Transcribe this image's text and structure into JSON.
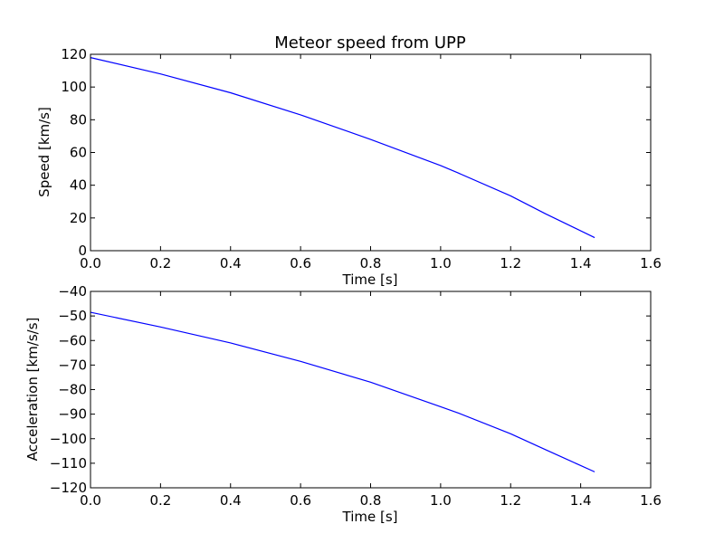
{
  "chart_data": [
    {
      "type": "line",
      "title": "Meteor speed from  UPP",
      "xlabel": "Time [s]",
      "ylabel": "Speed [km/s]",
      "xlim": [
        0.0,
        1.6
      ],
      "ylim": [
        0,
        120
      ],
      "xticks": [
        "0.0",
        "0.2",
        "0.4",
        "0.6",
        "0.8",
        "1.0",
        "1.2",
        "1.4",
        "1.6"
      ],
      "yticks": [
        "0",
        "20",
        "40",
        "60",
        "80",
        "100",
        "120"
      ],
      "grid": false,
      "series": [
        {
          "color": "#0000ff",
          "x": [
            0.0,
            0.2,
            0.4,
            0.6,
            0.8,
            1.0,
            1.05,
            1.2,
            1.3,
            1.44
          ],
          "y": [
            118,
            108,
            96.5,
            83,
            68,
            52,
            47.5,
            33.5,
            22.5,
            8
          ]
        }
      ]
    },
    {
      "type": "line",
      "title": "",
      "xlabel": "Time [s]",
      "ylabel": "Acceleration [km/s/s]",
      "xlim": [
        0.0,
        1.6
      ],
      "ylim": [
        -120,
        -40
      ],
      "xticks": [
        "0.0",
        "0.2",
        "0.4",
        "0.6",
        "0.8",
        "1.0",
        "1.2",
        "1.4",
        "1.6"
      ],
      "yticks": [
        "−120",
        "−110",
        "−100",
        "−90",
        "−80",
        "−70",
        "−60",
        "−50",
        "−40"
      ],
      "grid": false,
      "series": [
        {
          "color": "#0000ff",
          "x": [
            0.0,
            0.2,
            0.4,
            0.6,
            0.8,
            1.0,
            1.05,
            1.2,
            1.3,
            1.44
          ],
          "y": [
            -48.5,
            -54.5,
            -61,
            -68.5,
            -77,
            -87,
            -89.5,
            -98,
            -104.5,
            -113.5
          ]
        }
      ]
    }
  ]
}
